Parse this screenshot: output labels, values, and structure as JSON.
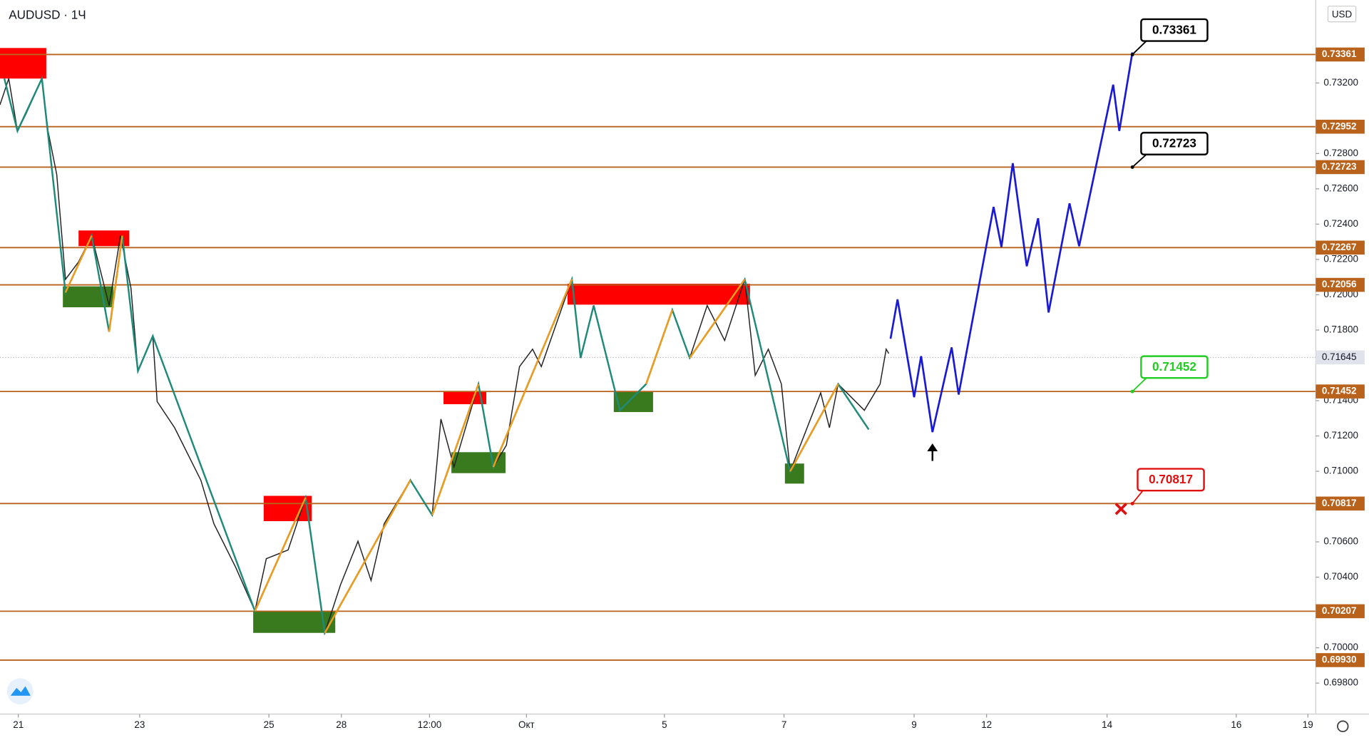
{
  "chart_data": {
    "type": "line",
    "title": "AUDUSD · 1Ч",
    "currency": "USD",
    "ylim": [
      0.696244,
      0.736698
    ],
    "yticks": [
      {
        "value": 0.732,
        "label": "0.73200"
      },
      {
        "value": 0.728,
        "label": "0.72800"
      },
      {
        "value": 0.726,
        "label": "0.72600"
      },
      {
        "value": 0.724,
        "label": "0.72400"
      },
      {
        "value": 0.722,
        "label": "0.72200"
      },
      {
        "value": 0.72,
        "label": "0.72000"
      },
      {
        "value": 0.718,
        "label": "0.71800"
      },
      {
        "value": 0.714,
        "label": "0.71400"
      },
      {
        "value": 0.712,
        "label": "0.71200"
      },
      {
        "value": 0.71,
        "label": "0.71000"
      },
      {
        "value": 0.706,
        "label": "0.70600"
      },
      {
        "value": 0.704,
        "label": "0.70400"
      },
      {
        "value": 0.7,
        "label": "0.70000"
      },
      {
        "value": 0.698,
        "label": "0.69800"
      }
    ],
    "levels": {
      "values": [
        0.73361,
        0.72952,
        0.72723,
        0.72267,
        0.72056,
        0.71452,
        0.70817,
        0.70207,
        0.6993
      ],
      "value_labels": [
        "0.73361",
        "0.72952",
        "0.72723",
        "0.72267",
        "0.72056",
        "0.71452",
        "0.70817",
        "0.70207",
        "0.69930"
      ],
      "color": "#b8621b"
    },
    "current_price": {
      "value": 0.71645,
      "label": "0.71645"
    },
    "callouts": [
      {
        "value": 0.73361,
        "label": "0.73361",
        "color": "#000000"
      },
      {
        "value": 0.72723,
        "label": "0.72723",
        "color": "#000000"
      },
      {
        "value": 0.71452,
        "label": "0.71452",
        "color": "#22cc22"
      },
      {
        "value": 0.70817,
        "label": "0.70817",
        "color": "#e01010"
      }
    ],
    "categories": [
      "21",
      "23",
      "25",
      "28",
      "12:00",
      "Окт",
      "5",
      "7",
      "9",
      "12",
      "14",
      "16",
      "19"
    ]
  }
}
